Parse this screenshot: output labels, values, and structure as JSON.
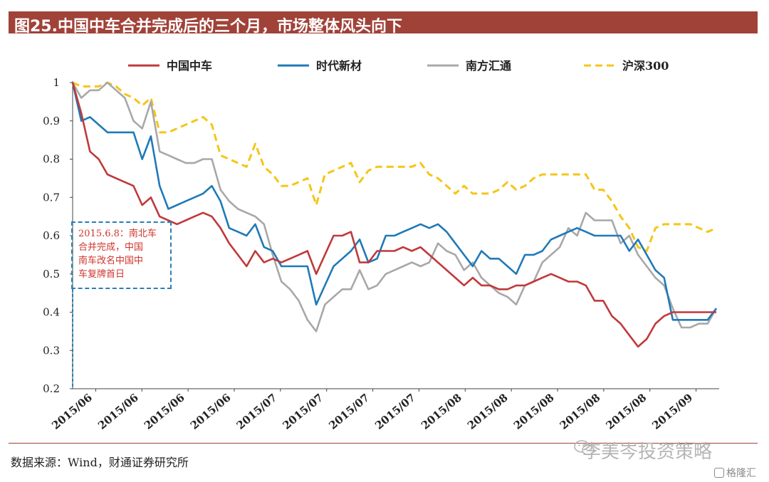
{
  "title": "图25.中国中车合并完成后的三个月，市场整体风头向下",
  "source": "数据来源：Wind，财通证券研究所",
  "watermark": "李美岑投资策略",
  "badge": "格隆汇",
  "callout": {
    "lines": [
      "2015.6.8：南北车",
      "合并完成，中国",
      "南车改名中国中",
      "车复牌首日"
    ]
  },
  "colors": {
    "title_bg": "#a04238",
    "crrc": "#c0393b",
    "times": "#1f7ab8",
    "south": "#a8a8a8",
    "hs300": "#f5c518",
    "callout": "#2b7fb2"
  },
  "chart_data": {
    "type": "line",
    "title": "",
    "xlabel": "",
    "ylabel": "",
    "ylim": [
      0.2,
      1.0
    ],
    "yticks": [
      "1",
      "0.9",
      "0.8",
      "0.7",
      "0.6",
      "0.5",
      "0.4",
      "0.3",
      "0.2"
    ],
    "yticks_values": [
      1.0,
      0.9,
      0.8,
      0.7,
      0.6,
      0.5,
      0.4,
      0.3,
      0.2
    ],
    "xticks": [
      "2015/06",
      "2015/06",
      "2015/06",
      "2015/06",
      "2015/07",
      "2015/07",
      "2015/07",
      "2015/07",
      "2015/08",
      "2015/08",
      "2015/08",
      "2015/08",
      "2015/08",
      "2015/09"
    ],
    "n_points": 70,
    "legend_position": "top",
    "series": [
      {
        "name": "中国中车",
        "key": "crrc",
        "style": "solid",
        "values": [
          1.0,
          0.92,
          0.82,
          0.8,
          0.76,
          0.75,
          0.74,
          0.73,
          0.68,
          0.7,
          0.65,
          0.64,
          0.63,
          0.64,
          0.65,
          0.66,
          0.65,
          0.62,
          0.58,
          0.55,
          0.52,
          0.56,
          0.53,
          0.54,
          0.53,
          0.54,
          0.55,
          0.56,
          0.5,
          0.55,
          0.6,
          0.6,
          0.61,
          0.53,
          0.53,
          0.56,
          0.56,
          0.56,
          0.57,
          0.56,
          0.57,
          0.55,
          0.53,
          0.51,
          0.49,
          0.47,
          0.49,
          0.47,
          0.47,
          0.46,
          0.46,
          0.47,
          0.47,
          0.48,
          0.49,
          0.5,
          0.49,
          0.48,
          0.48,
          0.47,
          0.43,
          0.43,
          0.39,
          0.37,
          0.34,
          0.31,
          0.33,
          0.37,
          0.39,
          0.4
        ]
      },
      {
        "name": "时代新材",
        "key": "times",
        "style": "solid",
        "values": [
          1.0,
          0.9,
          0.91,
          0.89,
          0.87,
          0.87,
          0.87,
          0.87,
          0.8,
          0.86,
          0.73,
          0.67,
          0.68,
          0.69,
          0.7,
          0.71,
          0.73,
          0.69,
          0.62,
          0.61,
          0.6,
          0.63,
          0.57,
          0.56,
          0.52,
          0.52,
          0.52,
          0.52,
          0.42,
          0.47,
          0.52,
          0.54,
          0.56,
          0.59,
          0.53,
          0.54,
          0.6,
          0.6,
          0.61,
          0.62,
          0.63,
          0.62,
          0.63,
          0.61,
          0.58,
          0.55,
          0.52,
          0.56,
          0.54,
          0.54,
          0.52,
          0.5,
          0.55,
          0.55,
          0.56,
          0.59,
          0.6,
          0.61,
          0.62,
          0.61,
          0.6,
          0.6,
          0.6,
          0.6,
          0.56,
          0.59,
          0.55,
          0.51,
          0.49,
          0.38
        ]
      },
      {
        "name": "南方汇通",
        "key": "south",
        "style": "solid",
        "values": [
          1.0,
          0.96,
          0.98,
          0.98,
          1.0,
          0.98,
          0.96,
          0.9,
          0.88,
          0.95,
          0.82,
          0.81,
          0.8,
          0.79,
          0.79,
          0.8,
          0.8,
          0.72,
          0.69,
          0.67,
          0.66,
          0.65,
          0.63,
          0.55,
          0.48,
          0.46,
          0.43,
          0.38,
          0.35,
          0.42,
          0.44,
          0.46,
          0.46,
          0.51,
          0.46,
          0.47,
          0.5,
          0.51,
          0.52,
          0.53,
          0.52,
          0.53,
          0.58,
          0.56,
          0.55,
          0.51,
          0.53,
          0.49,
          0.47,
          0.45,
          0.44,
          0.42,
          0.47,
          0.48,
          0.53,
          0.55,
          0.57,
          0.62,
          0.6,
          0.66,
          0.64,
          0.64,
          0.64,
          0.58,
          0.6,
          0.55,
          0.52,
          0.49,
          0.47,
          0.41
        ]
      },
      {
        "name": "沪深300",
        "key": "hs300",
        "style": "dashed",
        "values": [
          1.0,
          0.99,
          0.99,
          0.99,
          1.0,
          0.99,
          0.97,
          0.96,
          0.94,
          0.96,
          0.87,
          0.87,
          0.88,
          0.89,
          0.9,
          0.91,
          0.89,
          0.81,
          0.8,
          0.79,
          0.78,
          0.84,
          0.78,
          0.76,
          0.73,
          0.73,
          0.74,
          0.75,
          0.68,
          0.76,
          0.77,
          0.78,
          0.79,
          0.74,
          0.77,
          0.78,
          0.78,
          0.78,
          0.78,
          0.78,
          0.79,
          0.76,
          0.75,
          0.73,
          0.71,
          0.73,
          0.71,
          0.71,
          0.71,
          0.72,
          0.74,
          0.72,
          0.73,
          0.75,
          0.76,
          0.76,
          0.76,
          0.76,
          0.76,
          0.76,
          0.72,
          0.72,
          0.69,
          0.65,
          0.62,
          0.57,
          0.56,
          0.62,
          0.63,
          0.63
        ]
      }
    ],
    "series_tail_note": "from ~0.4 near end of August the series flatten toward 2015/09",
    "tail": {
      "crrc": [
        0.4,
        0.4,
        0.4,
        0.4,
        0.4
      ],
      "times": [
        0.38,
        0.38,
        0.38,
        0.38,
        0.41
      ],
      "south": [
        0.36,
        0.36,
        0.37,
        0.37,
        0.41
      ],
      "hs300": [
        0.63,
        0.63,
        0.62,
        0.61,
        0.62
      ]
    }
  }
}
